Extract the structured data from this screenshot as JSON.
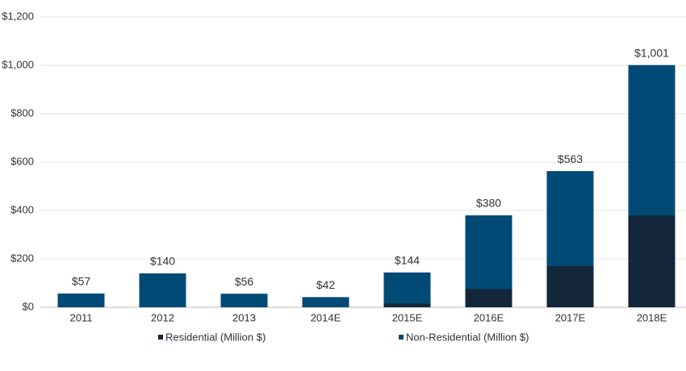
{
  "chart_data": {
    "type": "stacked-bar",
    "categories": [
      "2011",
      "2012",
      "2013",
      "2014E",
      "2015E",
      "2016E",
      "2017E",
      "2018E"
    ],
    "series": [
      {
        "name": "Residential (Million $)",
        "color": "#13263a",
        "values": [
          0,
          0,
          0,
          0,
          15,
          75,
          170,
          380
        ]
      },
      {
        "name": "Non-Residential (Million $)",
        "color": "#004a75",
        "values": [
          57,
          140,
          56,
          42,
          129,
          305,
          393,
          621
        ]
      }
    ],
    "totals": [
      57,
      140,
      56,
      42,
      144,
      380,
      563,
      1001
    ],
    "total_labels": [
      "$57",
      "$140",
      "$56",
      "$42",
      "$144",
      "$380",
      "$563",
      "$1,001"
    ],
    "ylim": [
      0,
      1200
    ],
    "yticks": [
      {
        "value": 0,
        "label": "$0"
      },
      {
        "value": 200,
        "label": "$200"
      },
      {
        "value": 400,
        "label": "$400"
      },
      {
        "value": 600,
        "label": "$600"
      },
      {
        "value": 800,
        "label": "$800"
      },
      {
        "value": 1000,
        "label": "$1,000"
      },
      {
        "value": 1200,
        "label": "$1,200"
      }
    ],
    "grid": true
  }
}
